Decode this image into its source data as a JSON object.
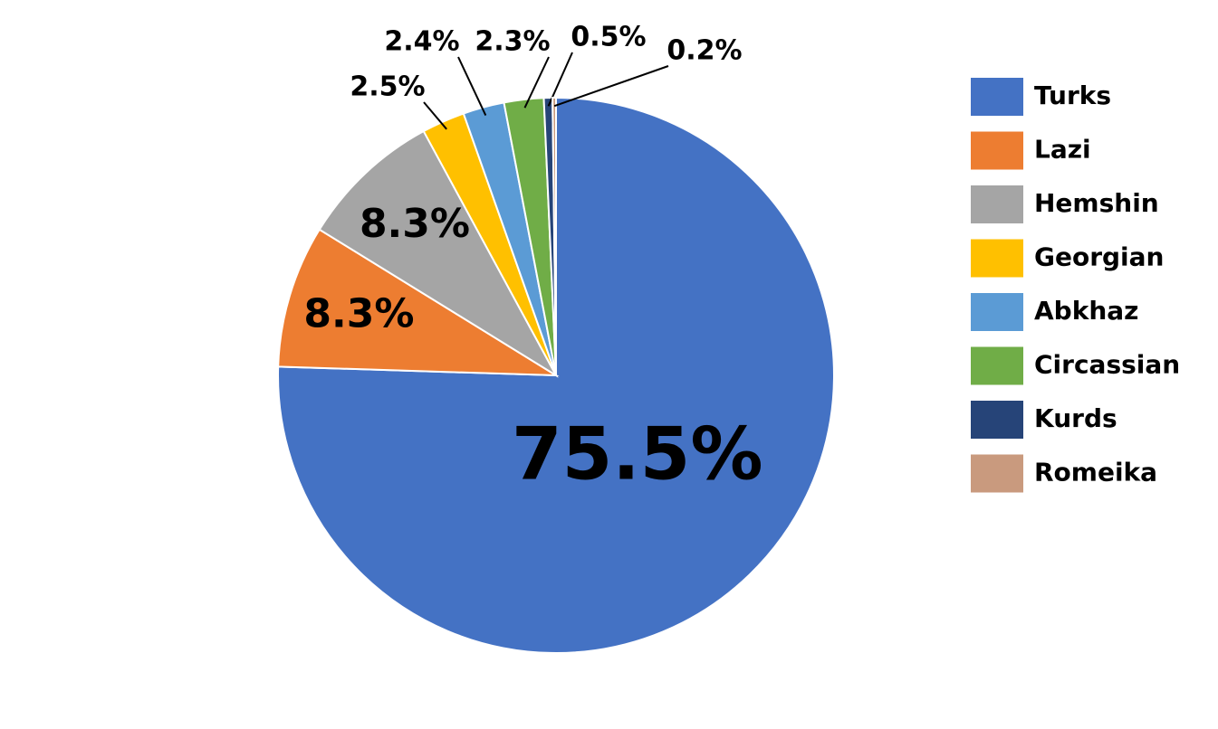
{
  "chart_data": {
    "type": "pie",
    "categories": [
      "Turks",
      "Lazi",
      "Hemshin",
      "Georgian",
      "Abkhaz",
      "Circassian",
      "Kurds",
      "Romeika"
    ],
    "values": [
      75.5,
      8.3,
      8.3,
      2.5,
      2.4,
      2.3,
      0.5,
      0.2
    ],
    "value_labels": [
      "75.5%",
      "8.3%",
      "8.3%",
      "2.5%",
      "2.4%",
      "2.3%",
      "0.5%",
      "0.2%"
    ],
    "colors": [
      "#4472c4",
      "#ed7d31",
      "#a5a5a5",
      "#ffc000",
      "#5b9bd5",
      "#70ad47",
      "#264478",
      "#c99a7e"
    ],
    "legend": "right"
  }
}
